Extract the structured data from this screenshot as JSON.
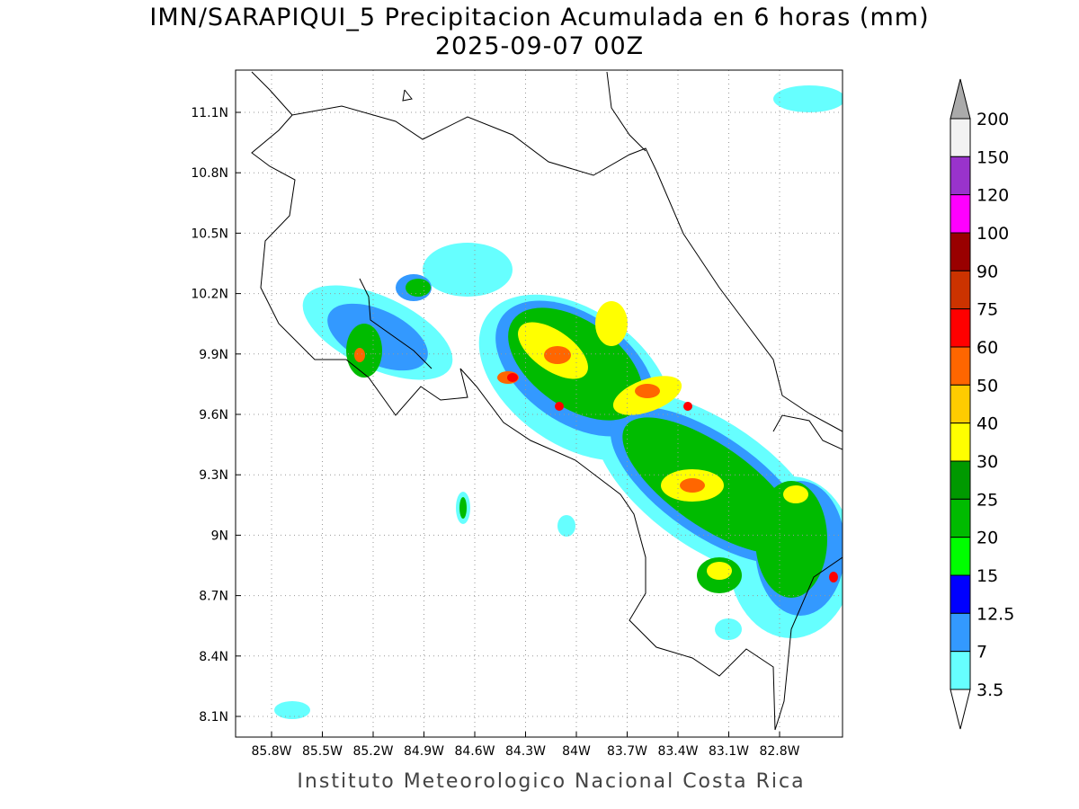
{
  "title": "IMN/SARAPIQUI_5 Precipitacion Acumulada en 6 horas (mm)",
  "subtitle": "2025-09-07 00Z",
  "lat_labels": [
    "11.1N",
    "10.8N",
    "10.5N",
    "10.2N",
    "9.9N",
    "9.6N",
    "9.3N",
    "9N",
    "8.7N",
    "8.4N",
    "8.1N"
  ],
  "lon_labels": [
    "85.8W",
    "85.5W",
    "85.2W",
    "84.9W",
    "84.6W",
    "84.3W",
    "84W",
    "83.7W",
    "83.4W",
    "83.1W",
    "82.8W"
  ],
  "colorbar": {
    "labels": [
      "200",
      "150",
      "120",
      "100",
      "90",
      "75",
      "60",
      "50",
      "40",
      "30",
      "25",
      "20",
      "15",
      "12.5",
      "7",
      "3.5"
    ],
    "colors": [
      "#f2f2f2",
      "#9933cc",
      "#ff00ff",
      "#990000",
      "#cc3300",
      "#ff0000",
      "#ff6600",
      "#ffcc00",
      "#ffff00",
      "#009900",
      "#00bb00",
      "#00ff00",
      "#0000ff",
      "#3399ff",
      "#66ffff"
    ],
    "over_color": "#aaaaaa",
    "under_color": "#ffffff"
  },
  "footer": "Instituto Meteorologico Nacional Costa Rica"
}
